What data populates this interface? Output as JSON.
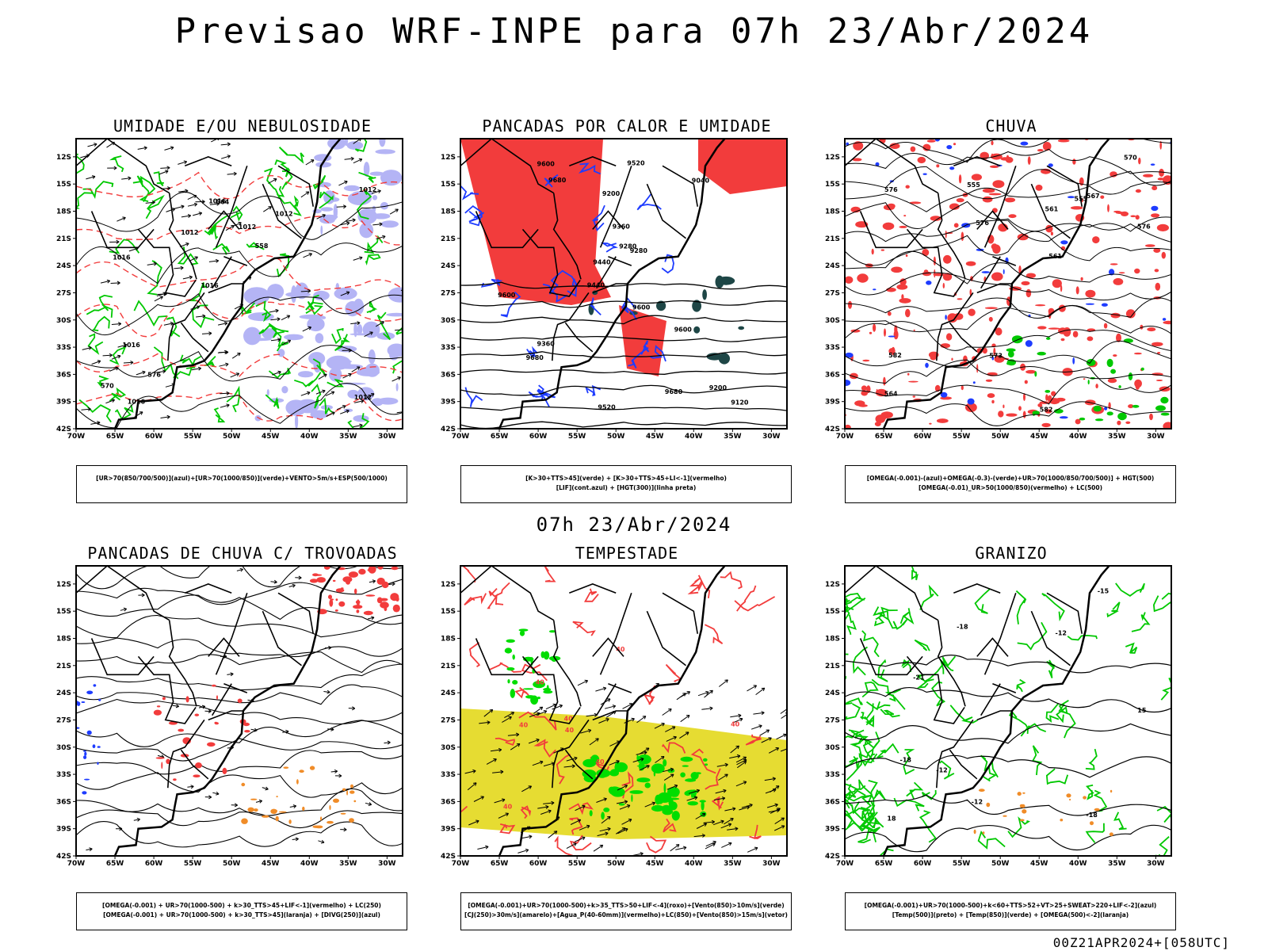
{
  "header": {
    "title": "Previsao WRF-INPE  para 07h 23/Abr/2024"
  },
  "middle_date": "07h 23/Abr/2024",
  "footer": "00Z21APR2024+[058UTC]",
  "axes": {
    "lat_labels": [
      "12S",
      "15S",
      "18S",
      "21S",
      "24S",
      "27S",
      "30S",
      "33S",
      "36S",
      "39S",
      "42S"
    ],
    "lon_labels": [
      "70W",
      "65W",
      "60W",
      "55W",
      "50W",
      "45W",
      "40W",
      "35W",
      "30W"
    ]
  },
  "panels": [
    {
      "title": "UMIDADE E/OU NEBULOSIDADE",
      "legend": [
        "[UR>70(850/700/500)](azul)+[UR>70(1000/850)](verde)+VENTO>5m/s+ESP(500/1000)"
      ],
      "map_labels": [
        "1012",
        "1016",
        "1012",
        "1016",
        "1012",
        "1016",
        "1016",
        "1012",
        "1016",
        "1012",
        "570",
        "576",
        "564",
        "558"
      ]
    },
    {
      "title": "PANCADAS POR CALOR E UMIDADE",
      "legend": [
        "[K>30+TTS>45](verde) + [K>30+TTS>45+LI<-1](vermelho)",
        "[LIF](cont.azul) + [HGT(300)](linha preta)"
      ],
      "map_labels": [
        "9680",
        "9680",
        "9600",
        "9600",
        "9680",
        "9600",
        "9520",
        "9440",
        "9360",
        "9280",
        "9200",
        "9120",
        "9040",
        "9600",
        "9520",
        "9440",
        "9360",
        "9280",
        "9200"
      ]
    },
    {
      "title": "CHUVA",
      "legend": [
        "[OMEGA(-0.001)-(azul)+OMEGA(-0.3)-(verde)+UR>70(1000/850/700/500)] + HGT(500)",
        "[OMEGA(-0.01)_UR>50(1000/850)(vermelho) + LC(500)"
      ],
      "map_labels": [
        "582",
        "576",
        "576",
        "570",
        "564",
        "561",
        "555",
        "582",
        "576",
        "573",
        "567",
        "561",
        "555"
      ]
    },
    {
      "title": "PANCADAS DE CHUVA C/ TROVOADAS",
      "legend": [
        "[OMEGA(-0.001) + UR>70(1000-500) + k>30_TTS>45+LIF<-1](vermelho) + LC(250)",
        "[OMEGA(-0.001) + UR>70(1000-500) + k>30_TTS>45](laranja) + [DIVG(250)](azul)"
      ],
      "map_labels": []
    },
    {
      "title": "TEMPESTADE",
      "legend": [
        "[OMEGA(-0.001)+UR>70(1000-500)+k>35_TTS>50+LIF<-4](roxo)+[Vento(850)>10m/s](verde)",
        "[CJ(250)>30m/s](amarelo)+[Agua_P(40-60mm)](vermelho)+LC(850)+[Vento(850)>15m/s](vetor)"
      ],
      "map_labels": [
        "40",
        "40",
        "40",
        "40",
        "40",
        "40",
        "40",
        "40"
      ]
    },
    {
      "title": "GRANIZO",
      "legend": [
        "[OMEGA(-0.001)+UR>70(1000-500)+k<60+TTS>52+VT>25+SWEAT>220+LIF<-2](azul)",
        "[Temp(500)](preto) + [Temp(850)](verde) + [OMEGA(500)<-2](laranja)"
      ],
      "map_labels": [
        "-15",
        "-12",
        "-18",
        "-18",
        "-21",
        "-18",
        "15",
        "18",
        "-12",
        "-12"
      ]
    }
  ],
  "colors": {
    "red": "#f23c3c",
    "green": "#00c800",
    "bright_green": "#00dd00",
    "blue": "#1e3cff",
    "lavender": "#b4b4f5",
    "yellow": "#e6dc32",
    "orange": "#f08c28",
    "teal": "#1e4646"
  }
}
